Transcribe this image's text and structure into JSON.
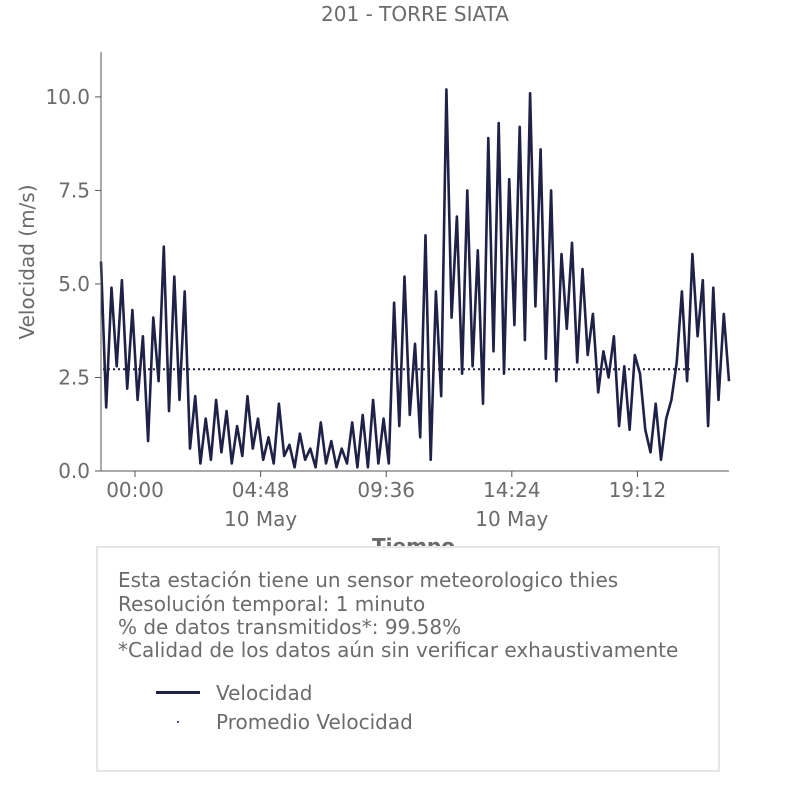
{
  "chart_data": {
    "type": "line",
    "title": "201 - TORRE SIATA",
    "xlabel": "Tiempo",
    "ylabel": "Velocidad (m/s)",
    "x_tick_labels": [
      "00:00",
      "04:48",
      "09:36",
      "14:24",
      "19:12"
    ],
    "x_tick_sublabels": [
      "",
      "10 May",
      "",
      "10 May",
      ""
    ],
    "x_tick_hours": [
      0,
      4.8,
      9.6,
      14.4,
      19.2
    ],
    "xlim_hours": [
      -1.3,
      22.7
    ],
    "ylim": [
      0,
      11.2
    ],
    "y_ticks": [
      0.0,
      2.5,
      5.0,
      7.5,
      10.0
    ],
    "y_tick_labels": [
      "0.0",
      "2.5",
      "5.0",
      "7.5",
      "10.0"
    ],
    "grid": false,
    "series": [
      {
        "name": "Velocidad",
        "color": "#1f2147",
        "style": "solid",
        "x_hours": [
          -1.3,
          -1.1,
          -0.9,
          -0.7,
          -0.5,
          -0.3,
          -0.1,
          0.1,
          0.3,
          0.5,
          0.7,
          0.9,
          1.1,
          1.3,
          1.5,
          1.7,
          1.9,
          2.1,
          2.3,
          2.5,
          2.7,
          2.9,
          3.1,
          3.3,
          3.5,
          3.7,
          3.9,
          4.1,
          4.3,
          4.5,
          4.7,
          4.9,
          5.1,
          5.3,
          5.5,
          5.7,
          5.9,
          6.1,
          6.3,
          6.5,
          6.7,
          6.9,
          7.1,
          7.3,
          7.5,
          7.7,
          7.9,
          8.1,
          8.3,
          8.5,
          8.7,
          8.9,
          9.1,
          9.3,
          9.5,
          9.7,
          9.9,
          10.1,
          10.3,
          10.5,
          10.7,
          10.9,
          11.1,
          11.3,
          11.5,
          11.7,
          11.9,
          12.1,
          12.3,
          12.5,
          12.7,
          12.9,
          13.1,
          13.3,
          13.5,
          13.7,
          13.9,
          14.1,
          14.3,
          14.5,
          14.7,
          14.9,
          15.1,
          15.3,
          15.5,
          15.7,
          15.9,
          16.1,
          16.3,
          16.5,
          16.7,
          16.9,
          17.1,
          17.3,
          17.5,
          17.7,
          17.9,
          18.1,
          18.3,
          18.5,
          18.7,
          18.9,
          19.1,
          19.3,
          19.5,
          19.7,
          19.9,
          20.1,
          20.3,
          20.5,
          20.7,
          20.9,
          21.1,
          21.3,
          21.5,
          21.7,
          21.9,
          22.1,
          22.3,
          22.5,
          22.7
        ],
        "values": [
          5.6,
          1.7,
          4.9,
          2.8,
          5.1,
          2.2,
          4.3,
          1.9,
          3.6,
          0.8,
          4.1,
          2.4,
          6.0,
          1.6,
          5.2,
          1.9,
          4.8,
          0.6,
          2.0,
          0.2,
          1.4,
          0.3,
          1.9,
          0.5,
          1.6,
          0.2,
          1.2,
          0.4,
          2.0,
          0.6,
          1.4,
          0.3,
          0.9,
          0.2,
          1.8,
          0.4,
          0.7,
          0.1,
          1.0,
          0.3,
          0.6,
          0.1,
          1.3,
          0.2,
          0.8,
          0.1,
          0.6,
          0.2,
          1.3,
          0.1,
          1.5,
          0.1,
          1.9,
          0.2,
          1.4,
          0.2,
          4.5,
          1.2,
          5.2,
          1.5,
          3.4,
          0.9,
          6.3,
          0.3,
          4.8,
          2.0,
          10.2,
          4.1,
          6.8,
          2.6,
          7.5,
          2.8,
          5.9,
          1.8,
          8.9,
          3.2,
          9.3,
          2.6,
          7.8,
          3.9,
          9.2,
          3.5,
          10.1,
          4.4,
          8.6,
          3.0,
          7.5,
          2.4,
          5.8,
          3.8,
          6.1,
          2.9,
          5.4,
          3.1,
          4.2,
          2.1,
          3.2,
          2.5,
          3.6,
          1.2,
          2.8,
          1.1,
          3.1,
          2.6,
          1.1,
          0.5,
          1.8,
          0.3,
          1.4,
          1.9,
          2.9,
          4.8,
          2.4,
          5.8,
          3.6,
          5.1,
          1.2,
          4.9,
          1.9,
          4.2,
          2.4
        ]
      },
      {
        "name": "Promedio Velocidad",
        "color": "#1f2147",
        "style": "dotted",
        "value": 2.72
      }
    ],
    "legend_position": "bottom"
  },
  "info": {
    "line1": "Esta estación tiene un sensor meteorologico thies",
    "line2": "Resolución temporal: 1 minuto",
    "line3": "% de datos transmitidos*: 99.58%",
    "line4": "*Calidad de los datos aún sin verificar exhaustivamente"
  },
  "legend": {
    "item1": "Velocidad",
    "item2": "Promedio Velocidad"
  }
}
